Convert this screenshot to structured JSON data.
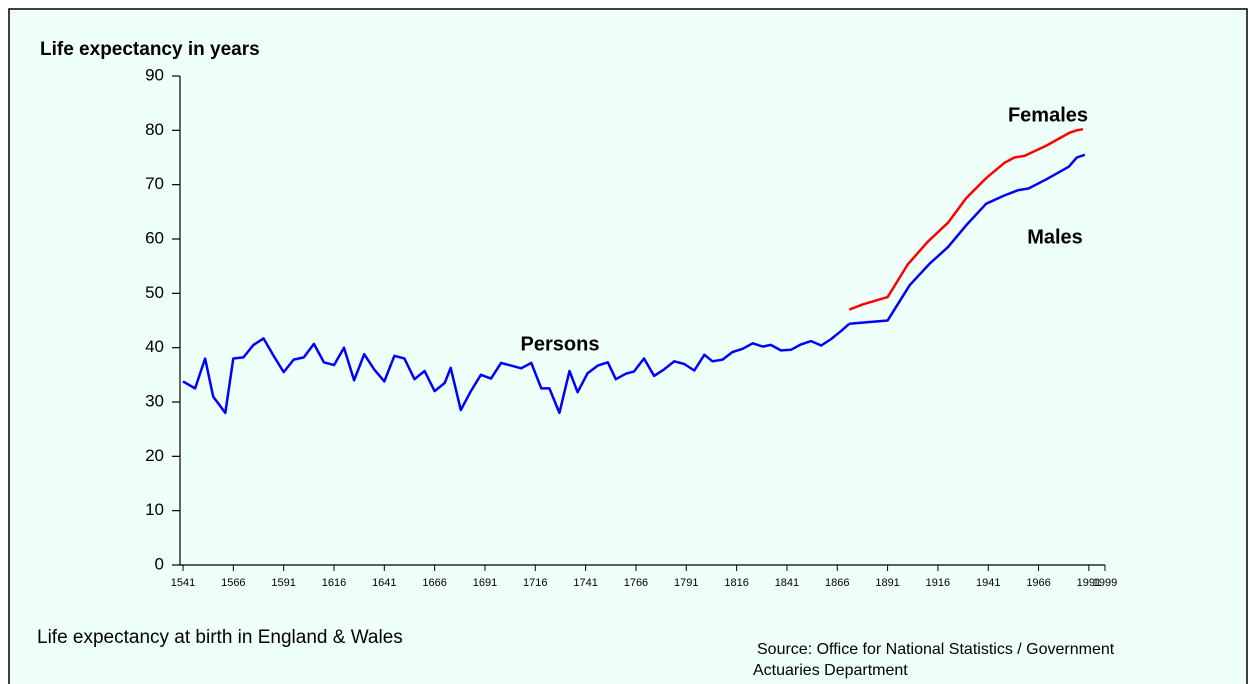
{
  "chart_data": {
    "type": "line",
    "y_label": "Life expectancy in years",
    "caption": "Life expectancy at birth in England & Wales",
    "source": [
      "Source: Office for National Statistics / Government",
      "Actuaries Department"
    ],
    "xlim": [
      1541,
      1999
    ],
    "xticks": [
      1541,
      1566,
      1591,
      1616,
      1641,
      1666,
      1691,
      1716,
      1741,
      1766,
      1791,
      1816,
      1841,
      1866,
      1891,
      1916,
      1941,
      1966,
      1991,
      1999
    ],
    "ylim": [
      0,
      90
    ],
    "yticks": [
      0,
      10,
      20,
      30,
      40,
      50,
      60,
      70,
      80,
      90
    ],
    "series": [
      {
        "name": "Persons",
        "color": "#0000ff",
        "x": [
          1541,
          1547,
          1552,
          1556,
          1562,
          1566,
          1571,
          1576,
          1581,
          1586,
          1591,
          1596,
          1601,
          1606,
          1611,
          1616,
          1621,
          1626,
          1631,
          1636,
          1641,
          1646,
          1651,
          1656,
          1661,
          1666,
          1671,
          1674,
          1679,
          1684,
          1689,
          1694,
          1699,
          1704,
          1709,
          1714,
          1719,
          1723,
          1728,
          1733,
          1737,
          1742,
          1747,
          1752,
          1756,
          1761,
          1765,
          1770,
          1775,
          1780,
          1785,
          1790,
          1795,
          1800,
          1804,
          1809,
          1814,
          1819,
          1824,
          1829,
          1833,
          1838,
          1843,
          1848,
          1853,
          1858,
          1863,
          1868,
          1872
        ],
        "values": [
          33.8,
          32.5,
          38,
          31,
          28,
          38,
          38.2,
          40.5,
          41.7,
          38.5,
          35.5,
          37.8,
          38.2,
          40.7,
          37.3,
          36.8,
          40,
          34,
          38.8,
          36,
          33.8,
          38.5,
          38,
          34.2,
          35.7,
          32,
          33.5,
          36.3,
          28.5,
          32,
          35,
          34.3,
          37.2,
          36.7,
          36.2,
          37.2,
          32.5,
          32.5,
          28,
          35.7,
          31.8,
          35.3,
          36.7,
          37.3,
          34.2,
          35.2,
          35.6,
          38,
          34.8,
          36,
          37.5,
          37,
          35.8,
          38.7,
          37.5,
          37.8,
          39.2,
          39.8,
          40.8,
          40.2,
          40.5,
          39.5,
          39.6,
          40.6,
          41.2,
          40.4,
          41.6,
          43.1,
          44.4
        ]
      },
      {
        "name": "Males",
        "color": "#0000ff",
        "x": [
          1872,
          1891,
          1902,
          1912,
          1921,
          1930,
          1940,
          1949,
          1956,
          1961,
          1970,
          1981,
          1985,
          1989
        ],
        "values": [
          44.4,
          45,
          51.5,
          55.5,
          58.5,
          62.5,
          66.5,
          68,
          69,
          69.3,
          71,
          73.3,
          75,
          75.5
        ]
      },
      {
        "name": "Females",
        "color": "#ff0000",
        "x": [
          1872,
          1879,
          1891,
          1901,
          1911,
          1921,
          1930,
          1940,
          1949,
          1954,
          1959,
          1970,
          1981,
          1985,
          1988
        ],
        "values": [
          47,
          48,
          49.3,
          55.3,
          59.5,
          63,
          67.5,
          71.2,
          74,
          75,
          75.3,
          77.2,
          79.5,
          80,
          80.2
        ]
      }
    ]
  }
}
